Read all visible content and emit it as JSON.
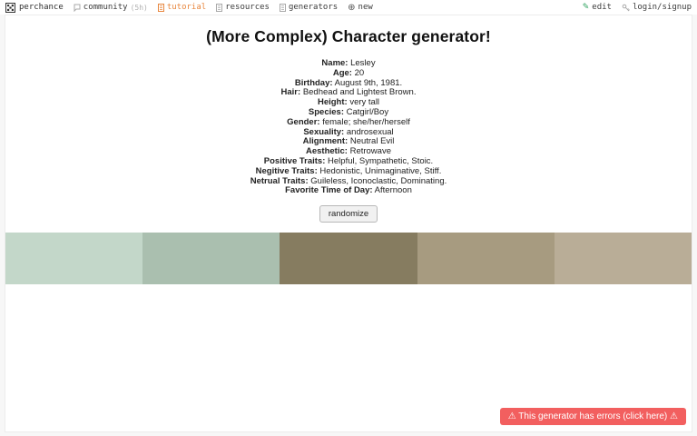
{
  "nav": {
    "brand": "perchance",
    "community": "community",
    "community_suffix": "(5h)",
    "tutorial": "tutorial",
    "resources": "resources",
    "generators": "generators",
    "new_label": "new",
    "new_glyph": "⊕",
    "edit_glyph": "✎",
    "edit": "edit",
    "login": "login/signup"
  },
  "generator": {
    "title": "(More Complex) Character generator!",
    "fields": [
      {
        "label": "Name:",
        "value": "Lesley"
      },
      {
        "label": "Age:",
        "value": "20"
      },
      {
        "label": "Birthday:",
        "value": "August 9th, 1981."
      },
      {
        "label": "Hair:",
        "value": "Bedhead and Lightest Brown."
      },
      {
        "label": "Height:",
        "value": "very tall"
      },
      {
        "label": "Species:",
        "value": "Catgirl/Boy"
      },
      {
        "label": "Gender:",
        "value": "female; she/her/herself"
      },
      {
        "label": "Sexuality:",
        "value": "androsexual"
      },
      {
        "label": "Alignment:",
        "value": "Neutral Evil"
      },
      {
        "label": "Aesthetic:",
        "value": "Retrowave"
      },
      {
        "label": "Positive Traits:",
        "value": "Helpful, Sympathetic, Stoic."
      },
      {
        "label": "Negitive Traits:",
        "value": "Hedonistic, Unimaginative, Stiff."
      },
      {
        "label": "Netrual Traits:",
        "value": "Guileless, Iconoclastic, Dominating."
      },
      {
        "label": "Favorite Time of Day:",
        "value": "Afternoon"
      }
    ],
    "randomize_label": "randomize"
  },
  "swatches": [
    "#c3d7c9",
    "#aabfaf",
    "#867c60",
    "#a79b80",
    "#b9ad97"
  ],
  "error_banner": {
    "text": "⚠ This generator has errors (click here) ⚠"
  },
  "colors": {
    "accent_orange": "#e8873f",
    "edit_green": "#2fa360",
    "error_red": "#f25f5f"
  }
}
